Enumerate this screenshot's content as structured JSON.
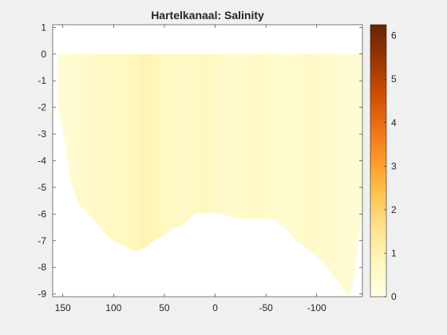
{
  "chart_data": {
    "type": "heatmap",
    "title": "Hartelkanaal: Salinity",
    "xlabel": "",
    "ylabel": "",
    "x_direction": "reversed",
    "xlim": [
      160,
      -145
    ],
    "ylim": [
      -9.1,
      1.1
    ],
    "xticks": [
      150,
      100,
      50,
      0,
      -50,
      -100
    ],
    "xtick_labels": [
      "150",
      "100",
      "50",
      "0",
      "-50",
      "-100"
    ],
    "yticks": [
      1,
      0,
      -1,
      -2,
      -3,
      -4,
      -5,
      -6,
      -7,
      -8,
      -9
    ],
    "ytick_labels": [
      "1",
      "0",
      "-1",
      "-2",
      "-3",
      "-4",
      "-5",
      "-6",
      "-7",
      "-8",
      "-9"
    ],
    "water_surface": 0,
    "bottom_profile": {
      "x": [
        155,
        150,
        146,
        142,
        135,
        125,
        115,
        105,
        95,
        85,
        78,
        70,
        60,
        50,
        40,
        35,
        28,
        20,
        12,
        5,
        0,
        -10,
        -20,
        -30,
        -40,
        -50,
        -58,
        -70,
        -80,
        -90,
        -100,
        -110,
        -120,
        -128,
        -132,
        -137,
        -142,
        -145
      ],
      "y": [
        -2.0,
        -2.8,
        -3.8,
        -4.8,
        -5.6,
        -6.0,
        -6.4,
        -6.9,
        -7.1,
        -7.3,
        -7.4,
        -7.3,
        -7.0,
        -6.8,
        -6.5,
        -6.5,
        -6.3,
        -6.0,
        -5.95,
        -5.95,
        -5.95,
        -6.05,
        -6.15,
        -6.2,
        -6.2,
        -6.2,
        -6.2,
        -6.6,
        -7.0,
        -7.3,
        -7.6,
        -8.0,
        -8.5,
        -8.9,
        -9.1,
        -8.4,
        -6.8,
        -6.0
      ]
    },
    "salinity_columns": {
      "x": [
        155,
        140,
        120,
        100,
        85,
        70,
        60,
        50,
        40,
        30,
        20,
        10,
        0,
        -10,
        -25,
        -40,
        -55,
        -70,
        -90,
        -110,
        -130,
        -145
      ],
      "values": [
        0.3,
        0.45,
        0.55,
        0.7,
        0.75,
        0.95,
        0.8,
        0.6,
        0.65,
        0.55,
        0.7,
        0.75,
        0.55,
        0.45,
        0.5,
        0.6,
        0.45,
        0.4,
        0.55,
        0.45,
        0.35,
        0.3
      ]
    },
    "colorbar": {
      "min": 0,
      "max": 6.25,
      "ticks": [
        0,
        1,
        2,
        3,
        4,
        5,
        6
      ],
      "tick_labels": [
        "0",
        "1",
        "2",
        "3",
        "4",
        "5",
        "6"
      ],
      "colors": [
        "#ffffe5",
        "#fff7bc",
        "#fee391",
        "#fec44f",
        "#fe9929",
        "#ec7014",
        "#cc4c02",
        "#993404",
        "#662506"
      ]
    }
  }
}
